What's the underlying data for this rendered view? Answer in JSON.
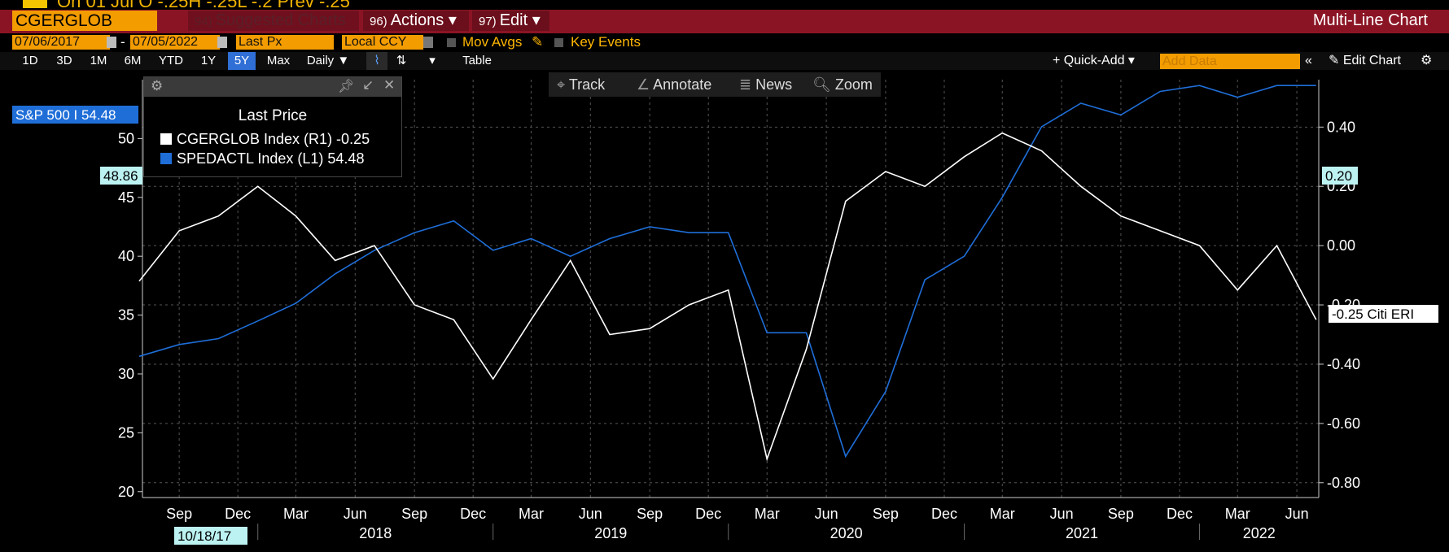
{
  "header": {
    "status_line": "On 01 Jul  O -.25H -.25L -.2 Prev -.25",
    "ticker": "CGERGLOB Index",
    "suggested": {
      "num": "94)",
      "label": "Suggested Charts"
    },
    "actions": {
      "num": "96)",
      "label": "Actions ▾"
    },
    "edit": {
      "num": "97)",
      "label": "Edit ▾"
    },
    "title": "Multi-Line Chart"
  },
  "controls": {
    "start_date": "07/06/2017",
    "end_date": "07/05/2022",
    "dash": "-",
    "field": "Last Px",
    "currency": "Local CCY",
    "mov_avgs": "Mov Avgs",
    "key_events": "Key Events"
  },
  "timeframes": [
    "1D",
    "3D",
    "1M",
    "6M",
    "YTD",
    "1Y",
    "5Y",
    "Max"
  ],
  "selected_timeframe": "5Y",
  "period": "Daily ▼",
  "table_label": "Table",
  "quick_add": "+ Quick-Add ▾",
  "add_data_placeholder": "Add Data",
  "edit_chart": "✎ Edit Chart",
  "chart_tools": [
    "Track",
    "Annotate",
    "News",
    "Zoom"
  ],
  "legend": {
    "title": "Last Price",
    "entries": [
      {
        "label": "CGERGLOB Index  (R1) -0.25",
        "color": "#ffffff"
      },
      {
        "label": "SPEDACTL Index  (L1)  54.48",
        "color": "#1f6ed8"
      }
    ]
  },
  "left_tags": {
    "sp_label": "S&P 500 I 54.48",
    "crosshair": "48.86"
  },
  "right_tags": {
    "crosshair": "0.20",
    "citi": "-0.25 Citi ERI"
  },
  "cursor_date": "10/18/17",
  "chart_data": {
    "type": "line",
    "x_months": [
      "Sep",
      "Dec",
      "Mar",
      "Jun",
      "Sep",
      "Dec",
      "Mar",
      "Jun",
      "Sep",
      "Dec",
      "Mar",
      "Jun",
      "Sep",
      "Dec",
      "Mar",
      "Jun",
      "Sep",
      "Dec",
      "Mar",
      "Jun"
    ],
    "x_years": [
      "2018",
      "2019",
      "2020",
      "2021",
      "2022"
    ],
    "y_left": {
      "ticks": [
        20,
        25,
        30,
        35,
        40,
        45,
        50
      ],
      "range": [
        19.5,
        55
      ]
    },
    "y_right": {
      "ticks": [
        0.4,
        0.2,
        0.0,
        -0.2,
        -0.4,
        -0.6,
        -0.8
      ],
      "range": [
        -0.85,
        0.56
      ]
    },
    "series": [
      {
        "name": "SPEDACTL Index",
        "axis": "left",
        "color": "#1f6ed8",
        "x": [
          "2017-07",
          "2017-09",
          "2017-11",
          "2018-01",
          "2018-03",
          "2018-05",
          "2018-07",
          "2018-09",
          "2018-11",
          "2019-01",
          "2019-03",
          "2019-05",
          "2019-07",
          "2019-09",
          "2019-11",
          "2020-01",
          "2020-03",
          "2020-05",
          "2020-07",
          "2020-09",
          "2020-11",
          "2021-01",
          "2021-03",
          "2021-05",
          "2021-07",
          "2021-09",
          "2021-11",
          "2022-01",
          "2022-03",
          "2022-05",
          "2022-07"
        ],
        "y": [
          31.5,
          32.5,
          33.0,
          34.5,
          36.0,
          38.5,
          40.5,
          42.0,
          43.0,
          40.5,
          41.5,
          40.0,
          41.5,
          42.5,
          42.0,
          42.0,
          33.5,
          33.5,
          23.0,
          28.5,
          38.0,
          40.0,
          45.0,
          51.0,
          53.0,
          52.0,
          54.0,
          54.5,
          53.5,
          54.5,
          54.5
        ]
      },
      {
        "name": "CGERGLOB Index",
        "axis": "right",
        "color": "#ffffff",
        "x": [
          "2017-07",
          "2017-09",
          "2017-11",
          "2018-01",
          "2018-03",
          "2018-05",
          "2018-07",
          "2018-09",
          "2018-11",
          "2019-01",
          "2019-03",
          "2019-05",
          "2019-07",
          "2019-09",
          "2019-11",
          "2020-01",
          "2020-03",
          "2020-05",
          "2020-07",
          "2020-09",
          "2020-11",
          "2021-01",
          "2021-03",
          "2021-05",
          "2021-07",
          "2021-09",
          "2021-11",
          "2022-01",
          "2022-03",
          "2022-05",
          "2022-07"
        ],
        "y": [
          -0.12,
          0.05,
          0.1,
          0.2,
          0.1,
          -0.05,
          0.0,
          -0.2,
          -0.25,
          -0.45,
          -0.25,
          -0.05,
          -0.3,
          -0.28,
          -0.2,
          -0.15,
          -0.72,
          -0.35,
          0.15,
          0.25,
          0.2,
          0.3,
          0.38,
          0.32,
          0.2,
          0.1,
          0.05,
          0.0,
          -0.15,
          0.0,
          -0.25
        ]
      }
    ]
  }
}
